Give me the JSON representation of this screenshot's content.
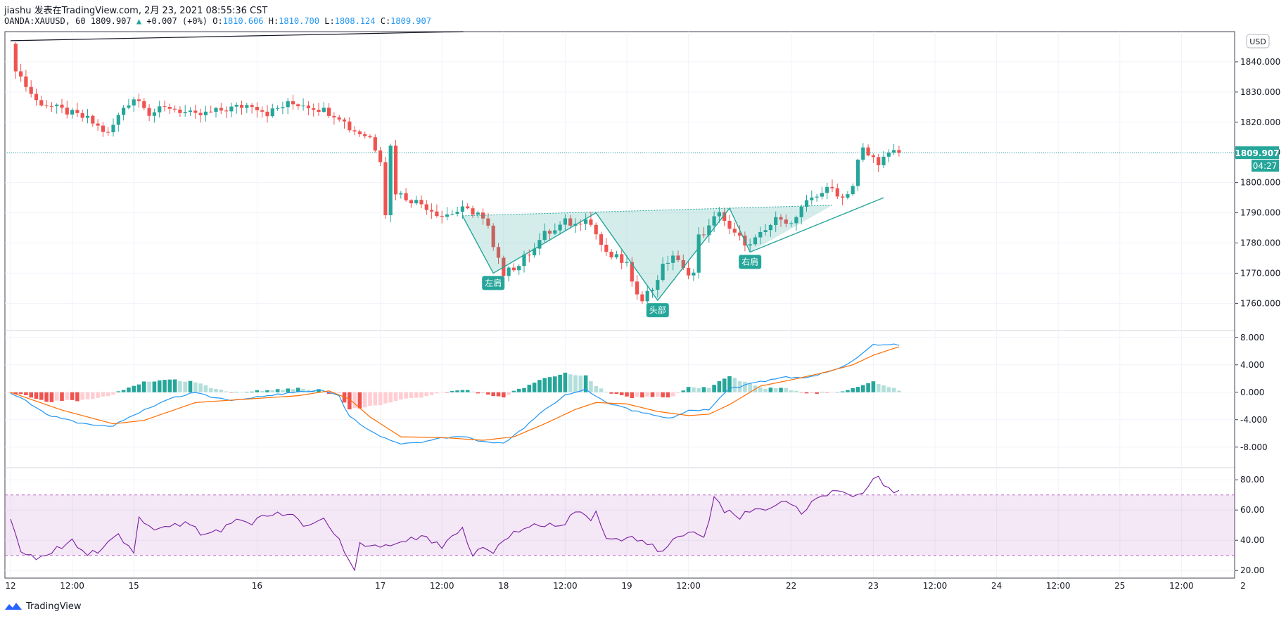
{
  "header": {
    "publish_line": "jiashu 发表在TradingView.com, 2月 23, 2021 08:55:36 CST",
    "symbol_line": "OANDA:XAUUSD, 60",
    "last": "1809.907",
    "change": "+0.007 (+0%)",
    "o_label": "O:",
    "o": "1810.606",
    "h_label": "H:",
    "h": "1810.700",
    "l_label": "L:",
    "l": "1808.124",
    "c_label": "C:",
    "c": "1809.907"
  },
  "currency_badge": "USD",
  "price_badge": "1809.907",
  "countdown_badge": "04:27",
  "footer": {
    "brand": "TradingView"
  },
  "colors": {
    "up": "#26a69a",
    "down": "#ef5350",
    "macd": "#2196f3",
    "signal": "#ff6d00",
    "rsi": "#7b1fa2",
    "pattern": "#26a69a"
  },
  "annotations": {
    "left_shoulder": "左肩",
    "head": "头部",
    "right_shoulder": "右肩"
  },
  "chart_data": [
    {
      "type": "candlestick",
      "title": "",
      "ylim": [
        1751,
        1850
      ],
      "y_ticks": [
        "1840.000",
        "1830.000",
        "1820.000",
        "1810.000",
        "1800.000",
        "1790.000",
        "1780.000",
        "1770.000",
        "1760.000"
      ],
      "y_tick_values": [
        1840,
        1830,
        1820,
        1810,
        1800,
        1790,
        1780,
        1770,
        1760
      ],
      "x_ticks": [
        "12",
        "12:00",
        "15",
        "16",
        "17",
        "12:00",
        "18",
        "12:00",
        "19",
        "12:00",
        "22",
        "23",
        "12:00",
        "24",
        "12:00",
        "25",
        "12:00",
        "2"
      ],
      "x_tick_hours": [
        0,
        12,
        24,
        48,
        72,
        84,
        96,
        108,
        120,
        132,
        152,
        168,
        180,
        192,
        204,
        216,
        228,
        240
      ],
      "time_axis": "hours since the 12 tick",
      "anchors_hours": [
        0,
        1,
        3,
        5,
        10,
        15,
        19,
        22,
        24,
        26,
        27,
        31,
        36,
        41,
        47,
        50,
        54,
        57,
        61,
        64,
        66,
        70,
        72,
        73,
        74,
        75,
        77,
        80,
        84,
        88,
        91,
        93,
        94,
        96,
        97,
        98,
        100,
        102,
        104,
        106,
        108,
        110,
        112,
        114,
        116,
        118,
        120,
        121,
        123,
        125,
        127,
        129,
        131,
        133,
        134,
        136,
        138,
        140,
        144,
        145,
        147,
        148,
        150,
        152,
        154,
        156,
        158,
        160,
        162,
        164,
        165,
        166,
        167,
        168,
        169,
        170,
        171,
        172,
        173
      ],
      "anchors_close": [
        1846,
        1838,
        1832,
        1827,
        1824,
        1821,
        1816,
        1825,
        1828,
        1826,
        1823,
        1825,
        1822,
        1824,
        1826,
        1823,
        1826,
        1826,
        1824,
        1822,
        1818,
        1815,
        1808,
        1790,
        1812,
        1797,
        1795,
        1793,
        1789,
        1791,
        1790,
        1785,
        1778,
        1770,
        1773,
        1771,
        1775,
        1779,
        1783,
        1784,
        1787,
        1786,
        1789,
        1783,
        1776,
        1775,
        1773,
        1766,
        1762,
        1765,
        1772,
        1776,
        1771,
        1770,
        1782,
        1785,
        1791,
        1784,
        1779,
        1781,
        1784,
        1786,
        1789,
        1786,
        1791,
        1795,
        1797,
        1798,
        1795,
        1799,
        1807,
        1811,
        1809,
        1808,
        1807,
        1808,
        1809,
        1810,
        1809.9
      ],
      "horizontal_line": 1809.907,
      "trendline": {
        "from_hours": 0,
        "from_price": 1847,
        "to_hours": 88,
        "to_price": 1850
      },
      "pattern_points": [
        {
          "hours": 88,
          "price": 1789
        },
        {
          "hours": 94,
          "price": 1770
        },
        {
          "hours": 114,
          "price": 1790
        },
        {
          "hours": 126,
          "price": 1761
        },
        {
          "hours": 140,
          "price": 1791.5
        },
        {
          "hours": 144,
          "price": 1777
        },
        {
          "hours": 170,
          "price": 1795
        }
      ],
      "neckline": {
        "from_hours": 88,
        "from_price": 1789,
        "to_hours": 160,
        "to_price": 1792.5
      }
    },
    {
      "type": "line",
      "title": "",
      "ylim": [
        -11,
        9
      ],
      "y_ticks": [
        "8.000",
        "4.000",
        "0.000",
        "-4.000",
        "-8.000"
      ],
      "y_tick_values": [
        8,
        4,
        0,
        -4,
        -8
      ],
      "macd_anchors_hours": [
        0,
        4,
        8,
        14,
        20,
        24,
        30,
        36,
        40,
        44,
        48,
        54,
        60,
        64,
        66,
        68,
        72,
        76,
        80,
        84,
        88,
        92,
        96,
        100,
        104,
        108,
        112,
        116,
        120,
        124,
        128,
        132,
        136,
        140,
        144,
        150,
        156,
        160,
        164,
        168,
        172,
        173
      ],
      "macd_anchors": [
        0,
        -1.8,
        -3.5,
        -4.6,
        -4.9,
        -3.4,
        -1.2,
        0,
        -0.9,
        -1.2,
        -0.7,
        -0.1,
        0.3,
        -0.6,
        -3.5,
        -4.6,
        -6.5,
        -7.6,
        -7.2,
        -6.6,
        -6.5,
        -7.2,
        -7.4,
        -5.2,
        -2.6,
        -0.3,
        0.5,
        -1.5,
        -2.4,
        -3.2,
        -3.9,
        -2.6,
        -2.5,
        0.5,
        1.2,
        2.1,
        2.3,
        3.2,
        4.5,
        7.0,
        7.0,
        6.9
      ],
      "signal_anchors_hours": [
        0,
        10,
        20,
        26,
        36,
        44,
        56,
        62,
        66,
        70,
        76,
        84,
        92,
        98,
        104,
        110,
        114,
        120,
        126,
        132,
        136,
        140,
        146,
        152,
        158,
        164,
        168,
        172,
        173
      ],
      "signal_anchors": [
        0,
        -2.6,
        -4.6,
        -4.1,
        -1.5,
        -1.1,
        -0.5,
        0.2,
        -1,
        -3.6,
        -6.5,
        -6.6,
        -7,
        -6.5,
        -4.6,
        -2.5,
        -1.5,
        -1.7,
        -2.8,
        -3.4,
        -3.2,
        -1.8,
        0.9,
        1.8,
        2.8,
        4,
        5.4,
        6.4,
        6.6
      ],
      "histogram": "macd minus signal"
    },
    {
      "type": "line",
      "title": "",
      "ylim": [
        15,
        88
      ],
      "y_ticks": [
        "80.00",
        "60.00",
        "40.00",
        "20.00"
      ],
      "y_tick_values": [
        80,
        60,
        40,
        20
      ],
      "band": [
        30,
        70
      ],
      "rsi_anchors_hours": [
        0,
        2,
        5,
        8,
        12,
        15,
        18,
        21,
        24,
        25,
        28,
        30,
        35,
        37,
        41,
        44,
        47,
        50,
        54,
        57,
        61,
        64,
        66,
        67,
        68,
        70,
        72,
        76,
        80,
        84,
        88,
        90,
        91,
        92,
        94,
        97,
        102,
        107,
        110,
        113,
        114,
        116,
        118,
        120,
        124,
        127,
        129,
        132,
        135,
        137,
        139,
        142,
        145,
        148,
        151,
        154,
        157,
        160,
        162,
        164,
        166,
        168,
        169,
        170,
        172,
        173
      ],
      "rsi_anchors": [
        54,
        34,
        28,
        32,
        40,
        30,
        35,
        44,
        31,
        55,
        45,
        50,
        52,
        45,
        46,
        55,
        52,
        56,
        58,
        50,
        55,
        40,
        26,
        22,
        38,
        38,
        35,
        39,
        42,
        36,
        49,
        29,
        33,
        35,
        31,
        43,
        52,
        48,
        60,
        52,
        58,
        42,
        40,
        43,
        38,
        32,
        40,
        45,
        42,
        67,
        60,
        55,
        62,
        60,
        66,
        58,
        68,
        72,
        73,
        67,
        72,
        80,
        82,
        75,
        72,
        73
      ]
    }
  ]
}
